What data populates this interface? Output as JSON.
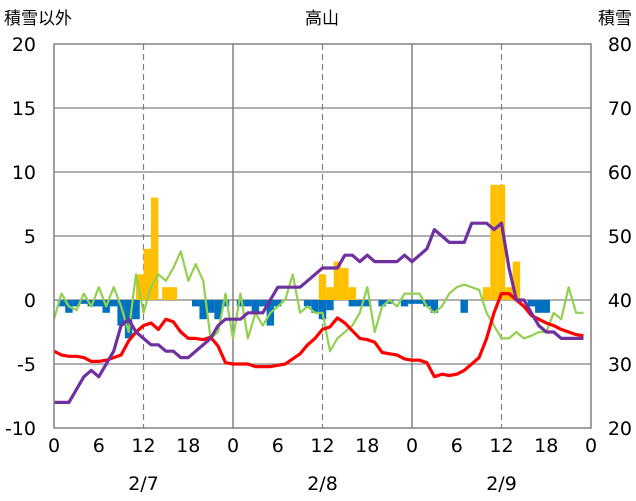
{
  "chart_data": {
    "type": "bar+line",
    "title": "高山",
    "left_axis": {
      "label": "積雪以外",
      "ticks": [
        "20",
        "15",
        "10",
        "5",
        "0",
        "-5",
        "-10"
      ],
      "ylim": [
        -10,
        20
      ]
    },
    "right_axis": {
      "label": "積雪",
      "ticks": [
        "80",
        "70",
        "60",
        "50",
        "40",
        "30",
        "20"
      ],
      "ylim": [
        20,
        80
      ]
    },
    "x_ticks": [
      "0",
      "6",
      "12",
      "18",
      "0",
      "6",
      "12",
      "18",
      "0",
      "6",
      "12",
      "18",
      "0"
    ],
    "day_labels": [
      "2/7",
      "2/8",
      "2/9"
    ],
    "hours_total": 72,
    "colors": {
      "snowfall": "#FFC000",
      "sunshine": "#0070C0",
      "temperature": "#FF0000",
      "humidity": "#92D050",
      "snow_depth": "#7030A0",
      "frame": "#808080",
      "grid": "#808080"
    },
    "series": [
      {
        "key": "snowfall",
        "type": "bar",
        "axis": "left",
        "data": [
          [
            11.5,
            2
          ],
          [
            12.5,
            4
          ],
          [
            13.5,
            8
          ],
          [
            15,
            1
          ],
          [
            16,
            1
          ],
          [
            36,
            2
          ],
          [
            37,
            1
          ],
          [
            38,
            3
          ],
          [
            39,
            2.5
          ],
          [
            40,
            1
          ],
          [
            58,
            1
          ],
          [
            59,
            9
          ],
          [
            60,
            9
          ],
          [
            61,
            1
          ],
          [
            62,
            3
          ]
        ]
      },
      {
        "key": "sunshine",
        "type": "bar",
        "axis": "left",
        "data": [
          [
            1,
            -0.5
          ],
          [
            2,
            -1
          ],
          [
            3,
            -0.5
          ],
          [
            4,
            -0.3
          ],
          [
            5,
            -0.5
          ],
          [
            6,
            -0.5
          ],
          [
            7,
            -1
          ],
          [
            8,
            -0.5
          ],
          [
            9,
            -2
          ],
          [
            10,
            -3
          ],
          [
            11,
            -1.5
          ],
          [
            19,
            -0.5
          ],
          [
            20,
            -1.5
          ],
          [
            21,
            -1
          ],
          [
            22,
            -1.5
          ],
          [
            23,
            -0.5
          ],
          [
            25,
            -0.5
          ],
          [
            26,
            -0.5
          ],
          [
            27,
            -1
          ],
          [
            28,
            -0.5
          ],
          [
            29,
            -2
          ],
          [
            30,
            -0.5
          ],
          [
            34,
            -0.5
          ],
          [
            35,
            -1
          ],
          [
            36,
            -1.5
          ],
          [
            37,
            -0.8
          ],
          [
            40,
            -0.5
          ],
          [
            41,
            -0.5
          ],
          [
            42,
            -0.5
          ],
          [
            44,
            -0.5
          ],
          [
            45,
            -0.3
          ],
          [
            47,
            -0.5
          ],
          [
            48,
            -0.3
          ],
          [
            49,
            -0.3
          ],
          [
            50,
            -0.5
          ],
          [
            51,
            -1
          ],
          [
            55,
            -1
          ],
          [
            64,
            -0.5
          ],
          [
            65,
            -1
          ],
          [
            66,
            -1
          ]
        ]
      },
      {
        "key": "temperature",
        "type": "line",
        "axis": "left",
        "x": [
          0,
          1,
          2,
          3,
          4,
          5,
          6,
          7,
          8,
          9,
          10,
          11,
          12,
          13,
          14,
          15,
          16,
          17,
          18,
          19,
          20,
          21,
          22,
          23,
          24,
          25,
          26,
          27,
          28,
          29,
          30,
          31,
          32,
          33,
          34,
          35,
          36,
          37,
          38,
          39,
          40,
          41,
          42,
          43,
          44,
          45,
          46,
          47,
          48,
          49,
          50,
          51,
          52,
          53,
          54,
          55,
          56,
          57,
          58,
          59,
          60,
          61,
          62,
          63,
          64,
          65,
          66,
          67,
          68,
          69,
          70,
          71
        ],
        "values": [
          -4,
          -4.3,
          -4.4,
          -4.4,
          -4.5,
          -4.8,
          -4.8,
          -4.7,
          -4.5,
          -4.3,
          -3.2,
          -2.5,
          -2,
          -1.8,
          -2.3,
          -1.5,
          -1.7,
          -2.5,
          -3,
          -3,
          -3.1,
          -2.9,
          -3.6,
          -4.9,
          -5,
          -5,
          -5,
          -5.2,
          -5.2,
          -5.2,
          -5.1,
          -5,
          -4.6,
          -4.2,
          -3.5,
          -3,
          -2.3,
          -2.1,
          -1.4,
          -1.8,
          -2.4,
          -3,
          -3.1,
          -3.3,
          -4.1,
          -4.2,
          -4.3,
          -4.6,
          -4.7,
          -4.7,
          -4.9,
          -6,
          -5.8,
          -5.9,
          -5.8,
          -5.5,
          -5,
          -4.5,
          -3,
          -1,
          0.5,
          0.5,
          0,
          -0.5,
          -1.2,
          -1.5,
          -1.8,
          -2.0,
          -2.3,
          -2.5,
          -2.7,
          -2.8
        ]
      },
      {
        "key": "humidity",
        "type": "line",
        "axis": "left",
        "x": [
          0,
          1,
          2,
          3,
          4,
          5,
          6,
          7,
          8,
          9,
          10,
          11,
          12,
          13,
          14,
          15,
          16,
          17,
          18,
          19,
          20,
          21,
          22,
          23,
          24,
          25,
          26,
          27,
          28,
          29,
          30,
          31,
          32,
          33,
          34,
          35,
          36,
          37,
          38,
          39,
          40,
          41,
          42,
          43,
          44,
          45,
          46,
          47,
          48,
          49,
          50,
          51,
          52,
          53,
          54,
          55,
          57,
          58,
          59,
          60,
          61,
          62,
          63,
          64,
          65,
          66,
          67,
          68,
          69,
          70,
          71
        ],
        "values": [
          -1.5,
          0.5,
          -0.5,
          -0.8,
          0.5,
          -0.5,
          1,
          -0.5,
          1,
          -0.5,
          -2.5,
          2,
          -1,
          1,
          2,
          1.5,
          2.5,
          3.8,
          1.5,
          2.8,
          1.5,
          -3,
          -2.5,
          0.5,
          -3,
          0.5,
          -3,
          -1,
          -2,
          -1,
          -0.5,
          0,
          2,
          -1,
          -0.5,
          -1,
          -1,
          -4,
          -3,
          -2.5,
          -2,
          -1,
          1,
          -2.5,
          -0.5,
          0,
          -0.5,
          0.5,
          0.5,
          0.5,
          -0.5,
          -1,
          -0.5,
          0.5,
          1,
          1.2,
          0.8,
          -1,
          -2,
          -3,
          -3,
          -2.5,
          -3,
          -2.8,
          -2.5,
          -2.5,
          -1,
          -1.5,
          1,
          -1,
          -1
        ]
      },
      {
        "key": "snow_depth",
        "type": "line",
        "axis": "right",
        "x": [
          0,
          1,
          2,
          3,
          4,
          5,
          6,
          7,
          8,
          9,
          10,
          11,
          12,
          13,
          14,
          15,
          16,
          17,
          18,
          19,
          20,
          21,
          22,
          23,
          24,
          25,
          26,
          27,
          28,
          29,
          30,
          31,
          32,
          33,
          34,
          35,
          36,
          37,
          38,
          39,
          40,
          41,
          42,
          43,
          44,
          45,
          46,
          47,
          48,
          49,
          50,
          51,
          52,
          53,
          54,
          55,
          56,
          57,
          58,
          59,
          60,
          61,
          62,
          63,
          64,
          65,
          66,
          67,
          68,
          69,
          70,
          71
        ],
        "values": [
          24,
          24,
          24,
          26,
          28,
          29,
          28,
          30,
          32,
          36,
          37,
          35,
          34,
          33,
          33,
          32,
          32,
          31,
          31,
          32,
          33,
          34,
          36,
          37,
          37,
          37,
          38,
          38,
          38,
          40,
          42,
          42,
          42,
          42,
          43,
          44,
          45,
          45,
          45,
          47,
          47,
          46,
          47,
          46,
          46,
          46,
          46,
          47,
          46,
          47,
          48,
          51,
          50,
          49,
          49,
          49,
          52,
          52,
          52,
          51,
          52,
          45,
          40,
          40,
          38,
          36,
          35,
          35,
          34,
          34,
          34,
          34
        ]
      }
    ]
  }
}
